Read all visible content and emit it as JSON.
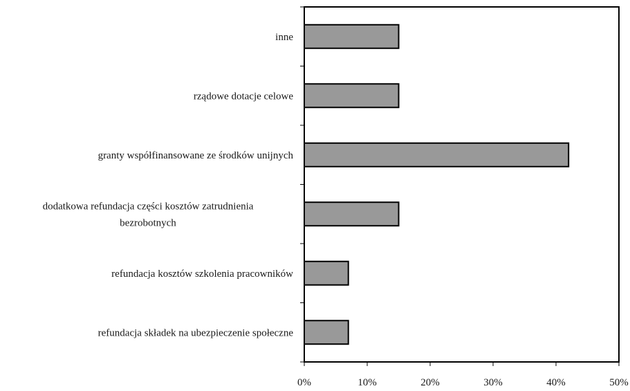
{
  "chart_data": {
    "type": "bar",
    "orientation": "horizontal",
    "categories": [
      [
        "inne"
      ],
      [
        "rządowe dotacje celowe"
      ],
      [
        "granty współfinansowane ze środków unijnych"
      ],
      [
        "dodatkowa refundacja części kosztów zatrudnienia",
        "bezrobotnych"
      ],
      [
        "refundacja kosztów szkolenia pracowników"
      ],
      [
        "refundacja składek na ubezpieczenie społeczne"
      ]
    ],
    "values": [
      15,
      15,
      42,
      15,
      7,
      7
    ],
    "xlim": [
      0,
      50
    ],
    "xticks": [
      "0%",
      "10%",
      "20%",
      "30%",
      "40%",
      "50%"
    ],
    "bar_color": "#999999",
    "grid": false,
    "legend": "none"
  }
}
